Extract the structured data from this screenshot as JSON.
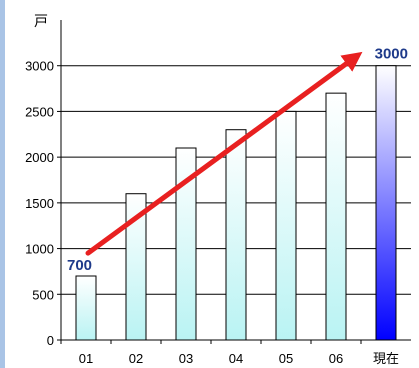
{
  "chart_data": {
    "type": "bar",
    "unit_label": "戸",
    "categories": [
      "01",
      "02",
      "03",
      "04",
      "05",
      "06",
      "現在"
    ],
    "values": [
      700,
      1600,
      2100,
      2300,
      2500,
      2700,
      3000
    ],
    "yticks": [
      0,
      500,
      1000,
      1500,
      2000,
      2500,
      3000
    ],
    "ylim": [
      0,
      3500
    ],
    "grid": "horizontal",
    "annotations": [
      {
        "text": "700",
        "category": "01",
        "value": 700
      },
      {
        "text": "3000",
        "category": "現在",
        "value": 3000
      }
    ],
    "trend_arrow": {
      "from_value": 950,
      "to_value": 3100,
      "color": "#e82020"
    },
    "colors": {
      "bar_gradient_top": "#ffffff",
      "bar_gradient_bottom": "#b9f3f3",
      "highlight_gradient_top": "#ffffff",
      "highlight_gradient_bottom": "#0000ff",
      "annotation": "#1e3a8a",
      "arrow": "#e82020",
      "left_border": "#a9c4e6"
    }
  }
}
